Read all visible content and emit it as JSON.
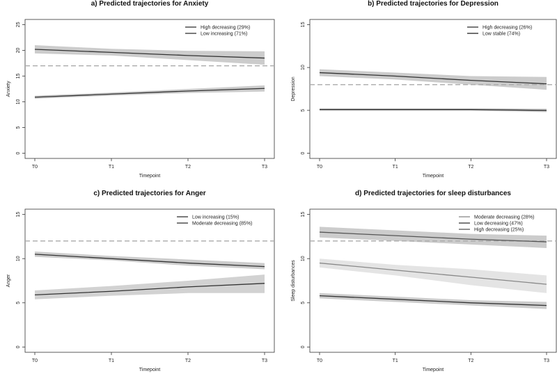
{
  "chart_data": [
    {
      "type": "line",
      "title": "a) Predicted trajectories for Anxiety",
      "xlabel": "Timepoint",
      "ylabel": "Anxiety",
      "categories": [
        "T0",
        "T1",
        "T2",
        "T3"
      ],
      "ylim": [
        0,
        25
      ],
      "yticks": [
        0,
        5,
        10,
        15,
        20,
        25
      ],
      "cutoff": 17,
      "legend_position": "top-right",
      "series": [
        {
          "name": "High decreasing (29%)",
          "values": [
            20.2,
            19.6,
            19.0,
            18.5
          ],
          "lower": [
            19.4,
            19.0,
            18.1,
            17.2
          ],
          "upper": [
            21.0,
            20.3,
            19.9,
            19.8
          ],
          "color": "#333333",
          "band": "#cccccc"
        },
        {
          "name": "Low increasing (71%)",
          "values": [
            10.9,
            11.5,
            12.1,
            12.6
          ],
          "lower": [
            10.6,
            11.2,
            11.7,
            12.0
          ],
          "upper": [
            11.2,
            11.8,
            12.5,
            13.2
          ],
          "color": "#333333",
          "band": "#cccccc"
        }
      ]
    },
    {
      "type": "line",
      "title": "b) Predicted trajectories for Depression",
      "xlabel": "Timepoint",
      "ylabel": "Depression",
      "categories": [
        "T0",
        "T1",
        "T2",
        "T3"
      ],
      "ylim": [
        0,
        15
      ],
      "yticks": [
        0,
        5,
        10,
        15
      ],
      "cutoff": 8,
      "legend_position": "top-right",
      "series": [
        {
          "name": "High decreasing (26%)",
          "values": [
            9.4,
            9.0,
            8.5,
            8.1
          ],
          "lower": [
            9.0,
            8.6,
            8.0,
            7.4
          ],
          "upper": [
            9.8,
            9.4,
            9.0,
            8.9
          ],
          "color": "#333333",
          "band": "#cccccc"
        },
        {
          "name": "Low stable (74%)",
          "values": [
            5.1,
            5.1,
            5.1,
            5.0
          ],
          "lower": [
            4.95,
            4.95,
            4.95,
            4.8
          ],
          "upper": [
            5.25,
            5.25,
            5.25,
            5.2
          ],
          "color": "#222222",
          "band": "#cccccc"
        }
      ]
    },
    {
      "type": "line",
      "title": "c) Predicted trajectories for Anger",
      "xlabel": "Timepoint",
      "ylabel": "Anger",
      "categories": [
        "T0",
        "T1",
        "T2",
        "T3"
      ],
      "ylim": [
        0,
        15
      ],
      "yticks": [
        0,
        5,
        10,
        15
      ],
      "cutoff": 12,
      "legend_position": "top-right",
      "series": [
        {
          "name": "Low increasing (15%)",
          "values": [
            5.9,
            6.3,
            6.8,
            7.2
          ],
          "lower": [
            5.4,
            5.8,
            6.1,
            6.1
          ],
          "upper": [
            6.4,
            6.9,
            7.5,
            8.2
          ],
          "color": "#333333",
          "band": "#d2d2d2"
        },
        {
          "name": "Moderate decreasing (85%)",
          "values": [
            10.5,
            10.0,
            9.5,
            9.1
          ],
          "lower": [
            10.2,
            9.8,
            9.2,
            8.8
          ],
          "upper": [
            10.8,
            10.3,
            9.9,
            9.5
          ],
          "color": "#333333",
          "band": "#cccccc"
        }
      ]
    },
    {
      "type": "line",
      "title": "d) Predicted trajectories for sleep disturbances",
      "xlabel": "Timepoint",
      "ylabel": "Sleep disturbances",
      "categories": [
        "T0",
        "T1",
        "T2",
        "T3"
      ],
      "ylim": [
        0,
        15
      ],
      "yticks": [
        0,
        5,
        10,
        15
      ],
      "cutoff": 12,
      "legend_position": "top-right",
      "series": [
        {
          "name": "Moderate decreasing (28%)",
          "values": [
            9.5,
            8.7,
            7.9,
            7.1
          ],
          "lower": [
            9.0,
            8.1,
            7.0,
            6.1
          ],
          "upper": [
            10.0,
            9.3,
            8.8,
            8.1
          ],
          "color": "#888888",
          "band": "#e4e4e4"
        },
        {
          "name": "Low decreasing (47%)",
          "values": [
            5.8,
            5.4,
            5.0,
            4.7
          ],
          "lower": [
            5.5,
            5.1,
            4.7,
            4.3
          ],
          "upper": [
            6.1,
            5.7,
            5.3,
            5.1
          ],
          "color": "#333333",
          "band": "#cccccc"
        },
        {
          "name": "High decreasing (25%)",
          "values": [
            13.0,
            12.6,
            12.2,
            11.9
          ],
          "lower": [
            12.4,
            12.0,
            11.6,
            11.2
          ],
          "upper": [
            13.6,
            13.2,
            12.8,
            12.6
          ],
          "color": "#555555",
          "band": "#cccccc"
        }
      ]
    }
  ]
}
